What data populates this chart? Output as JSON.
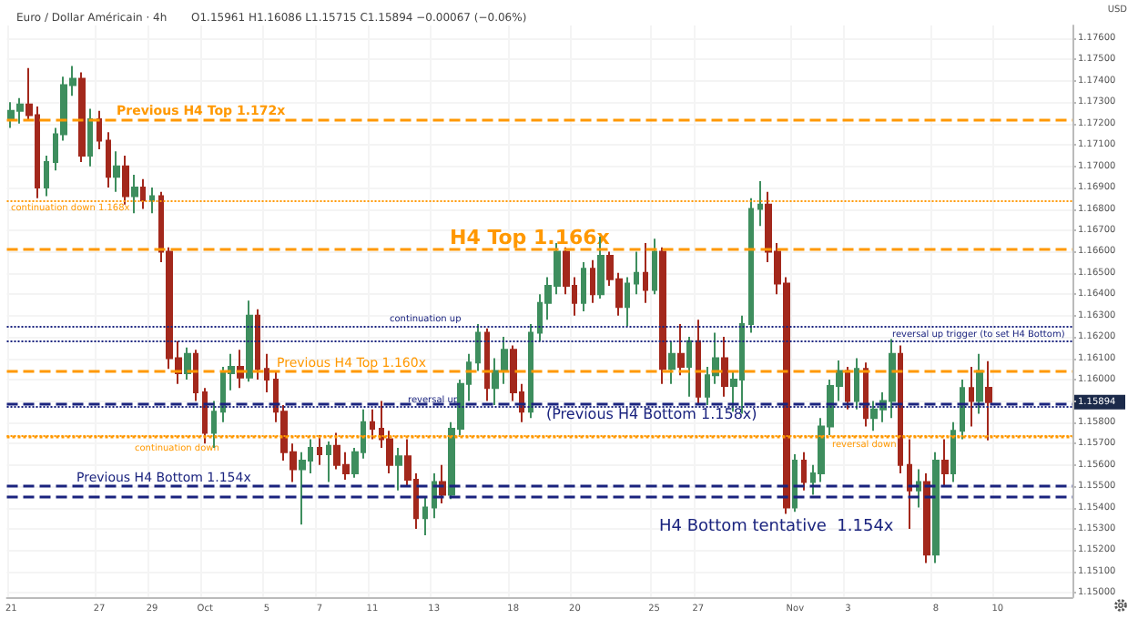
{
  "chart_data": {
    "type": "candlestick",
    "title": "Euro / Dollar Américain · 4h",
    "subtitle": "O1.15961 H1.16086 L1.15715 C1.15894 −0.00067 (−0.06%)",
    "categories": [
      "21",
      null,
      null,
      null,
      null,
      null,
      null,
      null,
      null,
      null,
      "27",
      null,
      null,
      null,
      null,
      null,
      "29",
      null,
      null,
      null,
      null,
      null,
      "Oct",
      null,
      null,
      null,
      null,
      null,
      null,
      "5",
      null,
      null,
      null,
      null,
      null,
      "7",
      null,
      null,
      null,
      null,
      null,
      "11",
      null,
      null,
      null,
      null,
      null,
      null,
      "13",
      null,
      null,
      null,
      null,
      null,
      null,
      null,
      null,
      "18",
      null,
      null,
      null,
      null,
      null,
      null,
      "20",
      null,
      null,
      null,
      null,
      null,
      null,
      null,
      null,
      "25",
      null,
      null,
      null,
      null,
      "27",
      null,
      null,
      null,
      null,
      null,
      null,
      null,
      null,
      null,
      null,
      "Nov",
      null,
      null,
      null,
      null,
      null,
      "3",
      null,
      null,
      null,
      null,
      null,
      null,
      null,
      null,
      null,
      "8",
      null,
      null,
      null,
      null,
      null,
      null,
      "10",
      null,
      null,
      null,
      null,
      null,
      null,
      null,
      null
    ],
    "ohlc": [
      [
        1.1722,
        1.173,
        1.1718,
        1.1726
      ],
      [
        1.1726,
        1.1732,
        1.172,
        1.1729
      ],
      [
        1.1729,
        1.1746,
        1.1722,
        1.1724
      ],
      [
        1.1724,
        1.1728,
        1.1685,
        1.169
      ],
      [
        1.169,
        1.1705,
        1.1686,
        1.1702
      ],
      [
        1.1702,
        1.1718,
        1.1698,
        1.1715
      ],
      [
        1.1715,
        1.1742,
        1.1712,
        1.1738
      ],
      [
        1.1738,
        1.1747,
        1.1733,
        1.1741
      ],
      [
        1.1741,
        1.1744,
        1.1702,
        1.1705
      ],
      [
        1.1705,
        1.1727,
        1.17,
        1.1722
      ],
      [
        1.1722,
        1.1726,
        1.1708,
        1.1712
      ],
      [
        1.1712,
        1.1716,
        1.169,
        1.1695
      ],
      [
        1.1695,
        1.1707,
        1.1688,
        1.17
      ],
      [
        1.17,
        1.1705,
        1.1682,
        1.1686
      ],
      [
        1.1686,
        1.1696,
        1.1678,
        1.169
      ],
      [
        1.169,
        1.1694,
        1.168,
        1.1684
      ],
      [
        1.1684,
        1.169,
        1.1678,
        1.1686
      ],
      [
        1.1686,
        1.1688,
        1.1655,
        1.166
      ],
      [
        1.166,
        1.1662,
        1.1605,
        1.161
      ],
      [
        1.161,
        1.1618,
        1.1598,
        1.1603
      ],
      [
        1.1603,
        1.1615,
        1.16,
        1.1612
      ],
      [
        1.1612,
        1.1614,
        1.159,
        1.1594
      ],
      [
        1.1594,
        1.1596,
        1.157,
        1.1575
      ],
      [
        1.1575,
        1.159,
        1.1568,
        1.1585
      ],
      [
        1.1585,
        1.1606,
        1.158,
        1.1603
      ],
      [
        1.1603,
        1.1612,
        1.1595,
        1.1606
      ],
      [
        1.1606,
        1.1614,
        1.1596,
        1.1601
      ],
      [
        1.1601,
        1.1637,
        1.1599,
        1.163
      ],
      [
        1.163,
        1.1633,
        1.16,
        1.1605
      ],
      [
        1.1605,
        1.1612,
        1.1594,
        1.16
      ],
      [
        1.16,
        1.1604,
        1.158,
        1.1585
      ],
      [
        1.1585,
        1.1588,
        1.1562,
        1.1566
      ],
      [
        1.1566,
        1.157,
        1.1552,
        1.1558
      ],
      [
        1.1558,
        1.1566,
        1.1532,
        1.1562
      ],
      [
        1.1562,
        1.1572,
        1.1556,
        1.1568
      ],
      [
        1.1568,
        1.1574,
        1.156,
        1.1565
      ],
      [
        1.1565,
        1.1571,
        1.1552,
        1.1569
      ],
      [
        1.1569,
        1.1575,
        1.1558,
        1.156
      ],
      [
        1.156,
        1.1566,
        1.1553,
        1.1556
      ],
      [
        1.1556,
        1.1568,
        1.1554,
        1.1566
      ],
      [
        1.1566,
        1.1586,
        1.1563,
        1.158
      ],
      [
        1.158,
        1.1586,
        1.1572,
        1.1577
      ],
      [
        1.1577,
        1.159,
        1.1568,
        1.1572
      ],
      [
        1.1572,
        1.1576,
        1.1556,
        1.156
      ],
      [
        1.156,
        1.1568,
        1.1548,
        1.1564
      ],
      [
        1.1564,
        1.1572,
        1.155,
        1.1553
      ],
      [
        1.1553,
        1.1556,
        1.153,
        1.1535
      ],
      [
        1.1535,
        1.1545,
        1.1527,
        1.154
      ],
      [
        1.154,
        1.1556,
        1.1535,
        1.1552
      ],
      [
        1.1552,
        1.156,
        1.1542,
        1.1546
      ],
      [
        1.1546,
        1.158,
        1.1544,
        1.1577
      ],
      [
        1.1577,
        1.16,
        1.1574,
        1.1598
      ],
      [
        1.1598,
        1.1612,
        1.159,
        1.1608
      ],
      [
        1.1608,
        1.1626,
        1.1604,
        1.1622
      ],
      [
        1.1622,
        1.1624,
        1.159,
        1.1596
      ],
      [
        1.1596,
        1.161,
        1.1588,
        1.1604
      ],
      [
        1.1604,
        1.162,
        1.1598,
        1.1614
      ],
      [
        1.1614,
        1.1616,
        1.159,
        1.1594
      ],
      [
        1.1594,
        1.1598,
        1.158,
        1.1585
      ],
      [
        1.1585,
        1.1626,
        1.1582,
        1.1622
      ],
      [
        1.1622,
        1.164,
        1.1618,
        1.1636
      ],
      [
        1.1636,
        1.1648,
        1.1628,
        1.1644
      ],
      [
        1.1644,
        1.1664,
        1.164,
        1.166
      ],
      [
        1.166,
        1.1662,
        1.164,
        1.1644
      ],
      [
        1.1644,
        1.1648,
        1.163,
        1.1636
      ],
      [
        1.1636,
        1.1655,
        1.1632,
        1.1652
      ],
      [
        1.1652,
        1.1656,
        1.1636,
        1.164
      ],
      [
        1.164,
        1.1667,
        1.1638,
        1.1658
      ],
      [
        1.1658,
        1.166,
        1.1644,
        1.1647
      ],
      [
        1.1647,
        1.165,
        1.163,
        1.1634
      ],
      [
        1.1634,
        1.1648,
        1.1625,
        1.1645
      ],
      [
        1.1645,
        1.166,
        1.164,
        1.165
      ],
      [
        1.165,
        1.1664,
        1.1636,
        1.1642
      ],
      [
        1.1642,
        1.1666,
        1.164,
        1.166
      ],
      [
        1.166,
        1.1662,
        1.1598,
        1.1605
      ],
      [
        1.1605,
        1.1618,
        1.1598,
        1.1612
      ],
      [
        1.1612,
        1.1626,
        1.1602,
        1.1606
      ],
      [
        1.1606,
        1.162,
        1.1592,
        1.1618
      ],
      [
        1.1618,
        1.1628,
        1.1588,
        1.1592
      ],
      [
        1.1592,
        1.1606,
        1.1588,
        1.1602
      ],
      [
        1.1602,
        1.1622,
        1.1598,
        1.161
      ],
      [
        1.161,
        1.162,
        1.1592,
        1.1597
      ],
      [
        1.1597,
        1.1604,
        1.1585,
        1.16
      ],
      [
        1.16,
        1.163,
        1.1584,
        1.1626
      ],
      [
        1.1626,
        1.1685,
        1.1622,
        1.168
      ],
      [
        1.168,
        1.1693,
        1.1672,
        1.1682
      ],
      [
        1.1682,
        1.1688,
        1.1655,
        1.166
      ],
      [
        1.166,
        1.1664,
        1.164,
        1.1645
      ],
      [
        1.1645,
        1.1648,
        1.1537,
        1.154
      ],
      [
        1.154,
        1.1565,
        1.1538,
        1.1562
      ],
      [
        1.1562,
        1.1566,
        1.1548,
        1.1552
      ],
      [
        1.1552,
        1.156,
        1.1546,
        1.1556
      ],
      [
        1.1556,
        1.1582,
        1.1552,
        1.1578
      ],
      [
        1.1578,
        1.16,
        1.1574,
        1.1597
      ],
      [
        1.1597,
        1.1609,
        1.159,
        1.1604
      ],
      [
        1.1604,
        1.1606,
        1.1586,
        1.159
      ],
      [
        1.159,
        1.161,
        1.1586,
        1.1605
      ],
      [
        1.1605,
        1.1608,
        1.1578,
        1.1582
      ],
      [
        1.1582,
        1.159,
        1.1576,
        1.1586
      ],
      [
        1.1586,
        1.1594,
        1.158,
        1.159
      ],
      [
        1.159,
        1.1619,
        1.1582,
        1.1612
      ],
      [
        1.1612,
        1.1616,
        1.1556,
        1.156
      ],
      [
        1.156,
        1.1572,
        1.153,
        1.1548
      ],
      [
        1.1548,
        1.1558,
        1.154,
        1.1552
      ],
      [
        1.1552,
        1.1556,
        1.1514,
        1.1518
      ],
      [
        1.1518,
        1.1566,
        1.1514,
        1.1562
      ],
      [
        1.1562,
        1.1572,
        1.155,
        1.1556
      ],
      [
        1.1556,
        1.158,
        1.1552,
        1.1576
      ],
      [
        1.1576,
        1.16,
        1.1572,
        1.1596
      ],
      [
        1.1596,
        1.1606,
        1.1578,
        1.159
      ],
      [
        1.159,
        1.1612,
        1.1584,
        1.1604
      ],
      [
        1.15961,
        1.16086,
        1.15715,
        1.15894
      ],
      null,
      null,
      null,
      null,
      null,
      null,
      null,
      null,
      null
    ],
    "colors": [
      "#3e8e5e",
      "#3e8e5e",
      "#a3281c",
      "#a3281c",
      "#3e8e5e",
      "#3e8e5e",
      "#3e8e5e",
      "#3e8e5e",
      "#a3281c",
      "#3e8e5e",
      "#a3281c",
      "#a3281c",
      "#3e8e5e",
      "#a3281c",
      "#3e8e5e",
      "#a3281c",
      "#3e8e5e",
      "#a3281c",
      "#a3281c",
      "#a3281c",
      "#3e8e5e",
      "#a3281c",
      "#a3281c",
      "#3e8e5e",
      "#3e8e5e",
      "#3e8e5e",
      "#a3281c",
      "#3e8e5e",
      "#a3281c",
      "#a3281c",
      "#a3281c",
      "#a3281c",
      "#a3281c",
      "#3e8e5e",
      "#3e8e5e",
      "#a3281c",
      "#3e8e5e",
      "#a3281c",
      "#a3281c",
      "#3e8e5e",
      "#3e8e5e",
      "#a3281c",
      "#a3281c",
      "#a3281c",
      "#3e8e5e",
      "#a3281c",
      "#a3281c",
      "#3e8e5e",
      "#3e8e5e",
      "#a3281c",
      "#3e8e5e",
      "#3e8e5e",
      "#3e8e5e",
      "#3e8e5e",
      "#a3281c",
      "#3e8e5e",
      "#3e8e5e",
      "#a3281c",
      "#a3281c",
      "#3e8e5e",
      "#3e8e5e",
      "#3e8e5e",
      "#3e8e5e",
      "#a3281c",
      "#a3281c",
      "#3e8e5e",
      "#a3281c",
      "#3e8e5e",
      "#a3281c",
      "#a3281c",
      "#3e8e5e",
      "#3e8e5e",
      "#a3281c",
      "#3e8e5e",
      "#a3281c",
      "#3e8e5e",
      "#a3281c",
      "#3e8e5e",
      "#a3281c",
      "#3e8e5e",
      "#3e8e5e",
      "#a3281c",
      "#3e8e5e",
      "#3e8e5e",
      "#3e8e5e",
      "#3e8e5e",
      "#a3281c",
      "#a3281c",
      "#a3281c",
      "#3e8e5e",
      "#a3281c",
      "#3e8e5e",
      "#3e8e5e",
      "#3e8e5e",
      "#3e8e5e",
      "#a3281c",
      "#3e8e5e",
      "#a3281c",
      "#3e8e5e",
      "#3e8e5e",
      "#3e8e5e",
      "#a3281c",
      "#a3281c",
      "#3e8e5e",
      "#a3281c",
      "#3e8e5e",
      "#a3281c",
      "#3e8e5e",
      "#3e8e5e",
      "#a3281c",
      "#3e8e5e",
      "#a3281c",
      null,
      null,
      null,
      null,
      null,
      null,
      null,
      null,
      null
    ],
    "ylim": [
      1.1498,
      1.1766
    ],
    "yticks": [
      {
        "value": 1.15,
        "label": "1.15000"
      },
      {
        "value": 1.151,
        "label": "1.15100"
      },
      {
        "value": 1.152,
        "label": "1.15200"
      },
      {
        "value": 1.153,
        "label": "1.15300"
      },
      {
        "value": 1.154,
        "label": "1.15400"
      },
      {
        "value": 1.155,
        "label": "1.15500"
      },
      {
        "value": 1.156,
        "label": "1.15600"
      },
      {
        "value": 1.157,
        "label": "1.15700"
      },
      {
        "value": 1.158,
        "label": "1.15800"
      },
      {
        "value": 1.159,
        "label": null
      },
      {
        "value": 1.16,
        "label": "1.16000"
      },
      {
        "value": 1.161,
        "label": "1.16100"
      },
      {
        "value": 1.162,
        "label": "1.16200"
      },
      {
        "value": 1.163,
        "label": "1.16300"
      },
      {
        "value": 1.164,
        "label": "1.16400"
      },
      {
        "value": 1.165,
        "label": "1.16500"
      },
      {
        "value": 1.166,
        "label": "1.16600"
      },
      {
        "value": 1.167,
        "label": "1.16700"
      },
      {
        "value": 1.168,
        "label": "1.16800"
      },
      {
        "value": 1.169,
        "label": "1.16900"
      },
      {
        "value": 1.17,
        "label": "1.17000"
      },
      {
        "value": 1.171,
        "label": "1.17100"
      },
      {
        "value": 1.172,
        "label": "1.17200"
      },
      {
        "value": 1.173,
        "label": "1.17300"
      },
      {
        "value": 1.174,
        "label": "1.17400"
      },
      {
        "value": 1.175,
        "label": "1.17500"
      },
      {
        "value": 1.176,
        "label": "1.17600"
      }
    ],
    "ref_lines": [
      {
        "axis": "y",
        "value": 1.1722,
        "label": "Previous H4 Top 1.172x",
        "color": "#ff9800",
        "line_style": "dashed"
      },
      {
        "axis": "y",
        "value": 1.1684,
        "label": "continuation down 1.168x",
        "color": "#ff9800",
        "line_style": "dotted"
      },
      {
        "axis": "y",
        "value": 1.1661,
        "label": "H4 Top 1.166x",
        "color": "#ff9800",
        "line_style": "dashed"
      },
      {
        "axis": "y",
        "value": 1.1625,
        "label": "continuation up",
        "color": "#1a237e",
        "line_style": "dotted"
      },
      {
        "axis": "y",
        "value": 1.1618,
        "label": "reversal up trigger (to set H4 Bottom)",
        "color": "#1a237e",
        "line_style": "dotted"
      },
      {
        "axis": "y",
        "value": 1.1604,
        "label": "Previous H4 Top 1.160x",
        "color": "#ff9800",
        "line_style": "dashed"
      },
      {
        "axis": "y",
        "value": 1.1587,
        "label": "reversal up",
        "color": "#1a237e",
        "line_style": "dotted"
      },
      {
        "axis": "y",
        "value": 1.1589,
        "label": "(Previous H4 Bottom 1.158x)",
        "color": "#1a237e",
        "line_style": "dashed"
      },
      {
        "axis": "y",
        "value": 1.1574,
        "label": "continuation down",
        "color": "#ff9800",
        "line_style": "dotted"
      },
      {
        "axis": "y",
        "value": 1.1573,
        "label": "reversal down",
        "color": "#ff9800",
        "line_style": "dotted"
      },
      {
        "axis": "y",
        "value": 1.155,
        "label": "Previous H4 Bottom 1.154x",
        "color": "#1a237e",
        "line_style": "dashed"
      },
      {
        "axis": "y",
        "value": 1.1545,
        "label": "H4 Bottom tentative  1.154x",
        "color": "#1a237e",
        "line_style": "dashed"
      }
    ],
    "grid": true,
    "annotations": [
      "USD",
      "1.15894"
    ]
  }
}
